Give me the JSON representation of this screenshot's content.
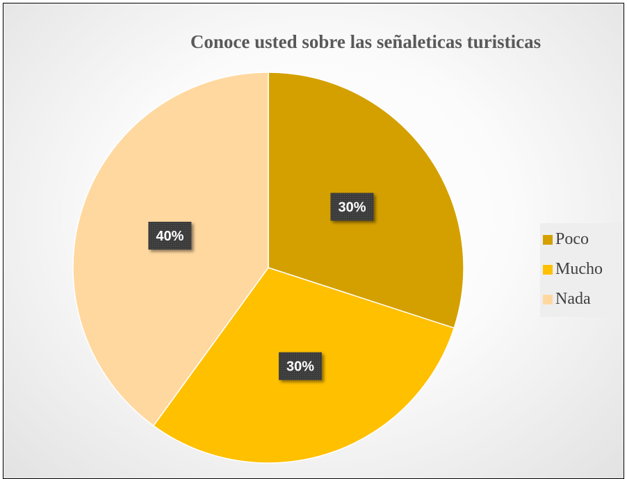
{
  "chart_data": {
    "type": "pie",
    "title": "Conoce usted sobre las señaleticas turisticas",
    "categories": [
      "Poco",
      "Mucho",
      "Nada"
    ],
    "values": [
      30,
      30,
      40
    ],
    "data_labels": [
      "30%",
      "30%",
      "40%"
    ],
    "colors": [
      "#D4A000",
      "#FFC000",
      "#FFD8A0"
    ],
    "legend_position": "right"
  }
}
